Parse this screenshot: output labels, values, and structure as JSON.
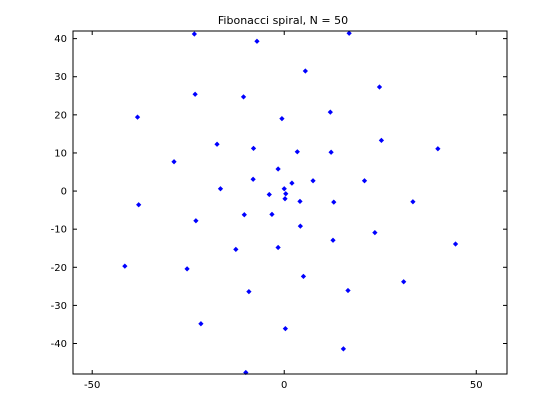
{
  "chart_data": {
    "type": "scatter",
    "title": "Fibonacci spiral, N = 50",
    "xlabel": "",
    "ylabel": "",
    "xlim": [
      -55,
      58
    ],
    "ylim": [
      -48,
      42
    ],
    "xticks": [
      -50,
      0,
      50
    ],
    "yticks": [
      -40,
      -30,
      -20,
      -10,
      0,
      10,
      20,
      30,
      40
    ],
    "grid": false,
    "marker_color": "#0000ff",
    "marker": "diamond",
    "series": [
      {
        "values": [
          {
            "x": 0.0,
            "y": 0.6
          },
          {
            "x": 0.4,
            "y": -0.7
          },
          {
            "x": 0.2,
            "y": -2.0
          },
          {
            "x": 2.0,
            "y": 2.1
          },
          {
            "x": -1.6,
            "y": 5.8
          },
          {
            "x": -3.9,
            "y": -0.9
          },
          {
            "x": -3.2,
            "y": -6.1
          },
          {
            "x": 4.1,
            "y": -2.7
          },
          {
            "x": 4.2,
            "y": -9.2
          },
          {
            "x": 7.5,
            "y": 2.7
          },
          {
            "x": 3.4,
            "y": 10.3
          },
          {
            "x": -8.1,
            "y": 3.1
          },
          {
            "x": -1.6,
            "y": -14.8
          },
          {
            "x": -8.0,
            "y": 11.2
          },
          {
            "x": -10.4,
            "y": -6.2
          },
          {
            "x": -12.6,
            "y": -15.3
          },
          {
            "x": -0.6,
            "y": 19.0
          },
          {
            "x": 12.2,
            "y": 10.2
          },
          {
            "x": 12.9,
            "y": -2.9
          },
          {
            "x": 12.7,
            "y": -12.9
          },
          {
            "x": 5.0,
            "y": -22.4
          },
          {
            "x": -16.6,
            "y": 0.6
          },
          {
            "x": -17.5,
            "y": 12.3
          },
          {
            "x": 20.9,
            "y": 2.7
          },
          {
            "x": -23.0,
            "y": -7.8
          },
          {
            "x": 12.0,
            "y": 20.7
          },
          {
            "x": -10.6,
            "y": 24.7
          },
          {
            "x": 23.6,
            "y": -10.9
          },
          {
            "x": 5.5,
            "y": 31.5
          },
          {
            "x": -28.7,
            "y": 7.7
          },
          {
            "x": -9.2,
            "y": -26.4
          },
          {
            "x": 16.6,
            "y": -26.1
          },
          {
            "x": -25.3,
            "y": -20.4
          },
          {
            "x": 25.3,
            "y": 13.3
          },
          {
            "x": -23.2,
            "y": 25.4
          },
          {
            "x": 0.3,
            "y": -36.1
          },
          {
            "x": 24.8,
            "y": 27.3
          },
          {
            "x": -21.7,
            "y": -34.8
          },
          {
            "x": -37.9,
            "y": -3.6
          },
          {
            "x": 31.1,
            "y": -23.8
          },
          {
            "x": 33.5,
            "y": -2.8
          },
          {
            "x": -38.2,
            "y": 19.4
          },
          {
            "x": -7.1,
            "y": 39.3
          },
          {
            "x": 40.0,
            "y": 11.1
          },
          {
            "x": -41.5,
            "y": -19.7
          },
          {
            "x": 15.4,
            "y": -41.4
          },
          {
            "x": -23.4,
            "y": 41.2
          },
          {
            "x": 16.9,
            "y": 41.4
          },
          {
            "x": 44.6,
            "y": -13.9
          },
          {
            "x": -10.0,
            "y": -47.6
          }
        ]
      }
    ]
  }
}
